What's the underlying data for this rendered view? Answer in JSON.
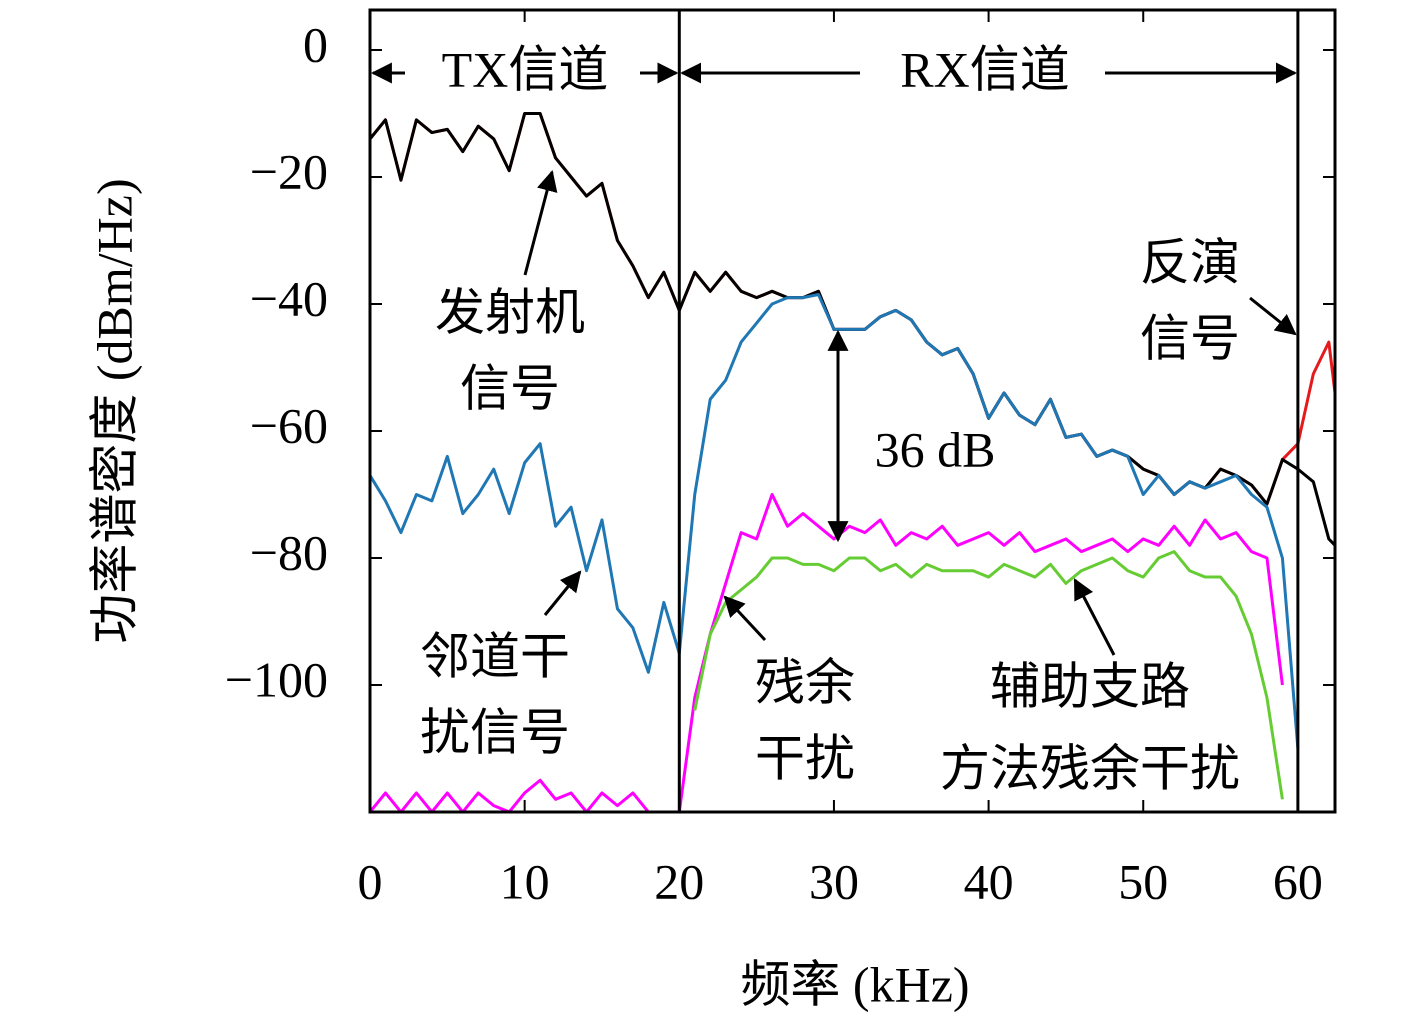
{
  "chart_data": {
    "type": "line",
    "xlabel": "频率 (kHz)",
    "ylabel": "功率谱密度 (dBm/Hz)",
    "x": [
      0,
      1,
      2,
      3,
      4,
      5,
      6,
      7,
      8,
      9,
      10,
      11,
      12,
      13,
      14,
      15,
      16,
      17,
      18,
      19,
      20,
      21,
      22,
      23,
      24,
      25,
      26,
      27,
      28,
      29,
      30,
      31,
      32,
      33,
      34,
      35,
      36,
      37,
      38,
      39,
      40,
      41,
      42,
      43,
      44,
      45,
      46,
      47,
      48,
      49,
      50,
      51,
      52,
      53,
      54,
      55,
      56,
      57,
      58,
      59,
      60,
      61,
      62,
      62.4
    ],
    "series": [
      {
        "color": "#e41a1c",
        "values": [
          -14,
          -11,
          -20.5,
          -11,
          -13,
          -12.5,
          -16,
          -12,
          -14,
          -19,
          -10,
          -10,
          -17,
          -20,
          -23,
          -21,
          -30,
          -34,
          -39,
          -35,
          -41,
          -35,
          -38,
          -35,
          -38,
          -39,
          -38,
          -39,
          -39,
          -38,
          -44,
          -44,
          -44,
          -42,
          -41,
          -42.5,
          -46,
          -48,
          -47,
          -51,
          -58,
          -54,
          -57.5,
          -59,
          -55,
          -61,
          -60.5,
          -64,
          -63,
          -64,
          -66,
          -67,
          -70,
          -68,
          -69,
          -66,
          -67,
          -68.5,
          -71.5,
          -64.5,
          -62,
          -51,
          -46,
          -54
        ]
      },
      {
        "color": "#000000",
        "values": [
          -14,
          -11,
          -20.5,
          -11,
          -13,
          -12.5,
          -16,
          -12,
          -14,
          -19,
          -10,
          -10,
          -17,
          -20,
          -23,
          -21,
          -30,
          -34,
          -39,
          -35,
          -41,
          -35,
          -38,
          -35,
          -38,
          -39,
          -38,
          -39,
          -39,
          -38,
          -44,
          -44,
          -44,
          -42,
          -41,
          -42.5,
          -46,
          -48,
          -47,
          -51,
          -58,
          -54,
          -57.5,
          -59,
          -55,
          -61,
          -60.5,
          -64,
          -63,
          -64,
          -66,
          -67,
          -70,
          -68,
          -69,
          -66,
          -67,
          -68.5,
          -71.5,
          -64.5,
          -66,
          -68,
          -77,
          -78
        ]
      },
      {
        "color": "#1f77b4",
        "values": [
          -67,
          -71,
          -76,
          -70,
          -71,
          -64,
          -73,
          -70,
          -66,
          -73,
          -65,
          -62,
          -75,
          -72,
          -82,
          -74,
          -88,
          -91,
          -98,
          -87,
          -95,
          -70,
          -55,
          -52,
          -46,
          -43,
          -40,
          -39,
          -39,
          -38.5,
          -44,
          -44,
          -44,
          -42,
          -41,
          -42.5,
          -46,
          -48,
          -47,
          -51,
          -58,
          -54,
          -57.5,
          -59,
          -55,
          -61,
          -60.5,
          -64,
          -63,
          -64,
          -70,
          -67,
          -70,
          -68,
          -69,
          -68,
          -67,
          -70,
          -72,
          -80,
          -110,
          null,
          null,
          null
        ]
      },
      {
        "color": "#ff00ff",
        "values": [
          -120,
          -117,
          -120,
          -117,
          -120,
          -117,
          -120,
          -117,
          -119,
          -120,
          -117,
          -115,
          -118,
          -117,
          -120,
          -117,
          -119,
          -117,
          -120,
          -120,
          -120,
          -102,
          -92,
          -84,
          -76,
          -77,
          -70,
          -75,
          -73,
          -75,
          -77,
          -75,
          -76,
          -74,
          -78,
          -76,
          -77,
          -75,
          -78,
          -77,
          -76,
          -78,
          -76,
          -79,
          -78,
          -77,
          -79,
          -78,
          -77,
          -79,
          -77,
          -78,
          -75,
          -78,
          -74,
          -77,
          -76,
          -79,
          -80,
          -100,
          null,
          null,
          null,
          null
        ]
      },
      {
        "color": "#66cc33",
        "values": [
          null,
          null,
          null,
          null,
          null,
          null,
          null,
          null,
          null,
          null,
          null,
          null,
          null,
          null,
          null,
          null,
          null,
          null,
          null,
          null,
          null,
          -104,
          -92,
          -87,
          -85,
          -83,
          -80,
          -80,
          -81,
          -81,
          -82,
          -80,
          -80,
          -82,
          -81,
          -83,
          -81,
          -82,
          -82,
          -82,
          -83,
          -81,
          -82,
          -83,
          -81,
          -84,
          -82,
          -81,
          -80,
          -82,
          -83,
          -80,
          -79,
          -82,
          -83,
          -83,
          -86,
          -92,
          -102,
          -118,
          null,
          null,
          null,
          null
        ]
      }
    ],
    "vlines": [
      20,
      60
    ],
    "channels": [
      {
        "text": "TX信道"
      },
      {
        "text": "RX信道"
      }
    ],
    "annotations": [
      {
        "text": [
          "发射机",
          "信号"
        ]
      },
      {
        "text": [
          "反演",
          "信号"
        ]
      },
      {
        "text": [
          "36 dB"
        ]
      },
      {
        "text": [
          "邻道干",
          "扰信号"
        ]
      },
      {
        "text": [
          "残余",
          "干扰"
        ]
      },
      {
        "text": [
          "辅助支路",
          "方法残余干扰"
        ]
      }
    ],
    "xlim": [
      0,
      62.4
    ],
    "ylim": [
      -120,
      6.3
    ],
    "xticks": [
      0,
      10,
      20,
      30,
      40,
      50,
      60
    ],
    "yticks": [
      {
        "value": 0,
        "label": "0"
      },
      {
        "value": -20,
        "label": "−20"
      },
      {
        "value": -40,
        "label": "−40"
      },
      {
        "value": -60,
        "label": "−60"
      },
      {
        "value": -80,
        "label": "−80"
      },
      {
        "value": -100,
        "label": "−100"
      }
    ]
  }
}
